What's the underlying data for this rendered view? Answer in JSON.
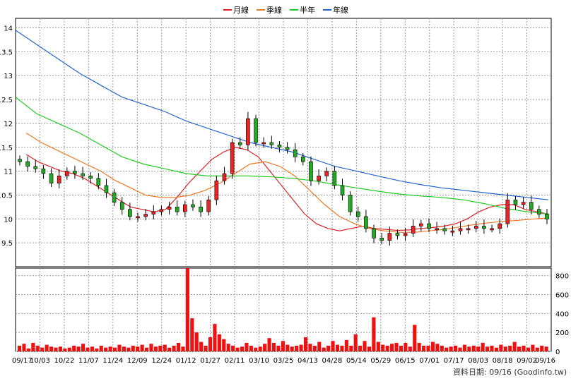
{
  "chart_data": [
    {
      "type": "candlestick",
      "legend": [
        {
          "name": "月線",
          "color": "#dd2222"
        },
        {
          "name": "季線",
          "color": "#ee7722"
        },
        {
          "name": "半年",
          "color": "#22cc22"
        },
        {
          "name": "年線",
          "color": "#2266cc"
        }
      ],
      "y_ticks": [
        "9.5",
        "10",
        "10.5",
        "11",
        "11.5",
        "12",
        "12.5",
        "13",
        "13.5",
        "14"
      ],
      "ylim": [
        9.0,
        14.2
      ],
      "x_ticks": [
        "09/17",
        "10/03",
        "10/22",
        "11/07",
        "11/24",
        "12/09",
        "12/24",
        "01/12",
        "01/27",
        "02/11",
        "03/10",
        "03/25",
        "04/13",
        "04/28",
        "05/14",
        "05/29",
        "06/15",
        "07/01",
        "07/17",
        "08/03",
        "08/18",
        "09/02",
        "09/16"
      ],
      "grid": true,
      "close": [
        11.2,
        11.1,
        11.05,
        10.95,
        10.75,
        10.9,
        11.0,
        10.95,
        10.9,
        10.85,
        10.7,
        10.55,
        10.35,
        10.2,
        10.05,
        10.05,
        10.1,
        10.15,
        10.2,
        10.25,
        10.15,
        10.3,
        10.25,
        10.15,
        10.4,
        10.8,
        10.95,
        11.6,
        11.55,
        12.1,
        11.6,
        11.6,
        11.55,
        11.5,
        11.45,
        11.3,
        11.2,
        10.8,
        10.9,
        11.0,
        10.7,
        10.5,
        10.15,
        10.05,
        9.8,
        9.6,
        9.55,
        9.7,
        9.65,
        9.7,
        9.85,
        9.9,
        9.8,
        9.8,
        9.75,
        9.75,
        9.8,
        9.8,
        9.85,
        9.8,
        9.8,
        9.9,
        10.4,
        10.3,
        10.35,
        10.2,
        10.1,
        10.0
      ],
      "ma_month": [
        11.35,
        11.2,
        11.1,
        11.0,
        10.95,
        10.85,
        10.7,
        10.55,
        10.4,
        10.25,
        10.2,
        10.15,
        10.2,
        10.45,
        10.75,
        11.0,
        11.25,
        11.4,
        11.5,
        11.45,
        11.3,
        11.0,
        10.7,
        10.4,
        10.1,
        9.9,
        9.8,
        9.75,
        9.8,
        9.85,
        9.8,
        9.78,
        9.76,
        9.77,
        9.8,
        9.82,
        9.85,
        9.9,
        10.0,
        10.15,
        10.25,
        10.3,
        10.3,
        10.2,
        10.15,
        10.1
      ],
      "ma_quarter": [
        11.8,
        11.6,
        11.45,
        11.3,
        11.15,
        11.0,
        10.8,
        10.65,
        10.5,
        10.45,
        10.45,
        10.5,
        10.6,
        10.75,
        10.95,
        11.15,
        11.2,
        11.1,
        10.9,
        10.6,
        10.3,
        10.05,
        9.9,
        9.8,
        9.75,
        9.72,
        9.72,
        9.75,
        9.78,
        9.83,
        9.88,
        9.92,
        9.95,
        9.97,
        10.0,
        10.02
      ],
      "ma_half": [
        12.55,
        12.2,
        12.0,
        11.8,
        11.55,
        11.3,
        11.15,
        11.05,
        10.95,
        10.9,
        10.9,
        10.9,
        10.88,
        10.85,
        10.8,
        10.72,
        10.65,
        10.58,
        10.52,
        10.48,
        10.45,
        10.4,
        10.32,
        10.22,
        10.15,
        10.1
      ],
      "ma_year": [
        13.95,
        13.65,
        13.35,
        13.05,
        12.8,
        12.55,
        12.4,
        12.25,
        12.05,
        11.9,
        11.75,
        11.6,
        11.5,
        11.4,
        11.25,
        11.1,
        11.0,
        10.9,
        10.8,
        10.72,
        10.65,
        10.6,
        10.55,
        10.5,
        10.45,
        10.4
      ]
    },
    {
      "type": "bar",
      "y_ticks": [
        "0",
        "200",
        "400",
        "600",
        "800"
      ],
      "ylim": [
        0,
        880
      ],
      "values": [
        60,
        80,
        30,
        90,
        60,
        40,
        70,
        50,
        40,
        50,
        30,
        40,
        60,
        50,
        80,
        40,
        50,
        30,
        60,
        40,
        50,
        40,
        70,
        50,
        40,
        60,
        50,
        70,
        40,
        80,
        50,
        60,
        70,
        40,
        60,
        90,
        50,
        880,
        350,
        200,
        100,
        60,
        150,
        290,
        180,
        130,
        80,
        60,
        40,
        50,
        90,
        60,
        40,
        50,
        80,
        140,
        90,
        60,
        110,
        70,
        50,
        60,
        70,
        150,
        80,
        60,
        100,
        40,
        60,
        110,
        70,
        60,
        120,
        60,
        180,
        60,
        110,
        50,
        360,
        100,
        70,
        60,
        80,
        90,
        60,
        90,
        50,
        280,
        90,
        60,
        60,
        100,
        80,
        60,
        40,
        50,
        60,
        40,
        70,
        50,
        60,
        50,
        90,
        50,
        60,
        40,
        70,
        50,
        60,
        100,
        50,
        60,
        40,
        70,
        40,
        60,
        50
      ]
    }
  ],
  "footer": "資料日期: 09/16  (Goodinfo.tw)"
}
